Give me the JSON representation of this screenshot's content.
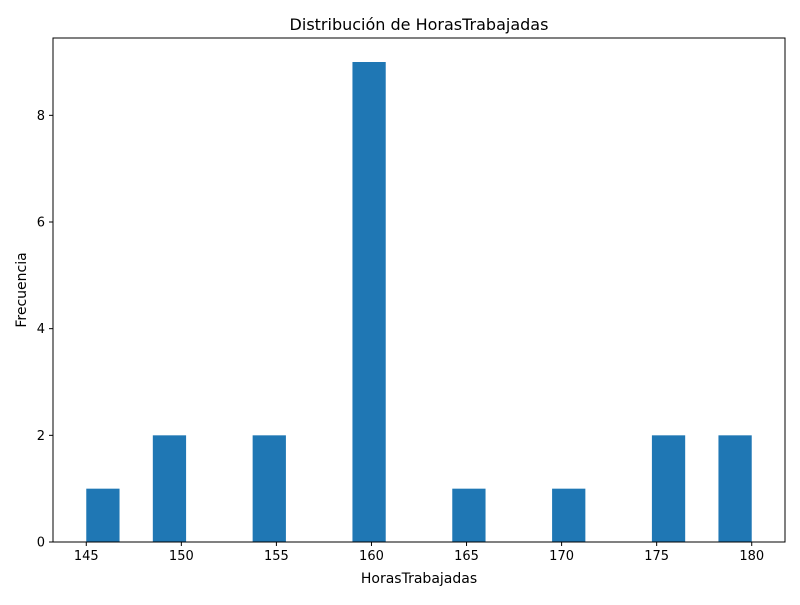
{
  "chart_data": {
    "type": "bar",
    "title": "Distribución de HorasTrabajadas",
    "xlabel": "HorasTrabajadas",
    "ylabel": "Frecuencia",
    "xlim": [
      143.25,
      181.75
    ],
    "ylim": [
      0,
      9.45
    ],
    "bin_width": 1.75,
    "bins": [
      {
        "start": 145.0,
        "end": 146.75,
        "value": 1
      },
      {
        "start": 146.75,
        "end": 148.5,
        "value": 0
      },
      {
        "start": 148.5,
        "end": 150.25,
        "value": 2
      },
      {
        "start": 150.25,
        "end": 152.0,
        "value": 0
      },
      {
        "start": 152.0,
        "end": 153.75,
        "value": 0
      },
      {
        "start": 153.75,
        "end": 155.5,
        "value": 2
      },
      {
        "start": 155.5,
        "end": 157.25,
        "value": 0
      },
      {
        "start": 157.25,
        "end": 159.0,
        "value": 0
      },
      {
        "start": 159.0,
        "end": 160.75,
        "value": 9
      },
      {
        "start": 160.75,
        "end": 162.5,
        "value": 0
      },
      {
        "start": 162.5,
        "end": 164.25,
        "value": 0
      },
      {
        "start": 164.25,
        "end": 166.0,
        "value": 1
      },
      {
        "start": 166.0,
        "end": 167.75,
        "value": 0
      },
      {
        "start": 167.75,
        "end": 169.5,
        "value": 0
      },
      {
        "start": 169.5,
        "end": 171.25,
        "value": 1
      },
      {
        "start": 171.25,
        "end": 173.0,
        "value": 0
      },
      {
        "start": 173.0,
        "end": 174.75,
        "value": 0
      },
      {
        "start": 174.75,
        "end": 176.5,
        "value": 2
      },
      {
        "start": 176.5,
        "end": 178.25,
        "value": 0
      },
      {
        "start": 178.25,
        "end": 180.0,
        "value": 2
      }
    ],
    "xticks": [
      145,
      150,
      155,
      160,
      165,
      170,
      175,
      180
    ],
    "yticks": [
      0,
      2,
      4,
      6,
      8
    ],
    "bar_color": "#1f77b4",
    "grid": false,
    "legend": "none"
  }
}
